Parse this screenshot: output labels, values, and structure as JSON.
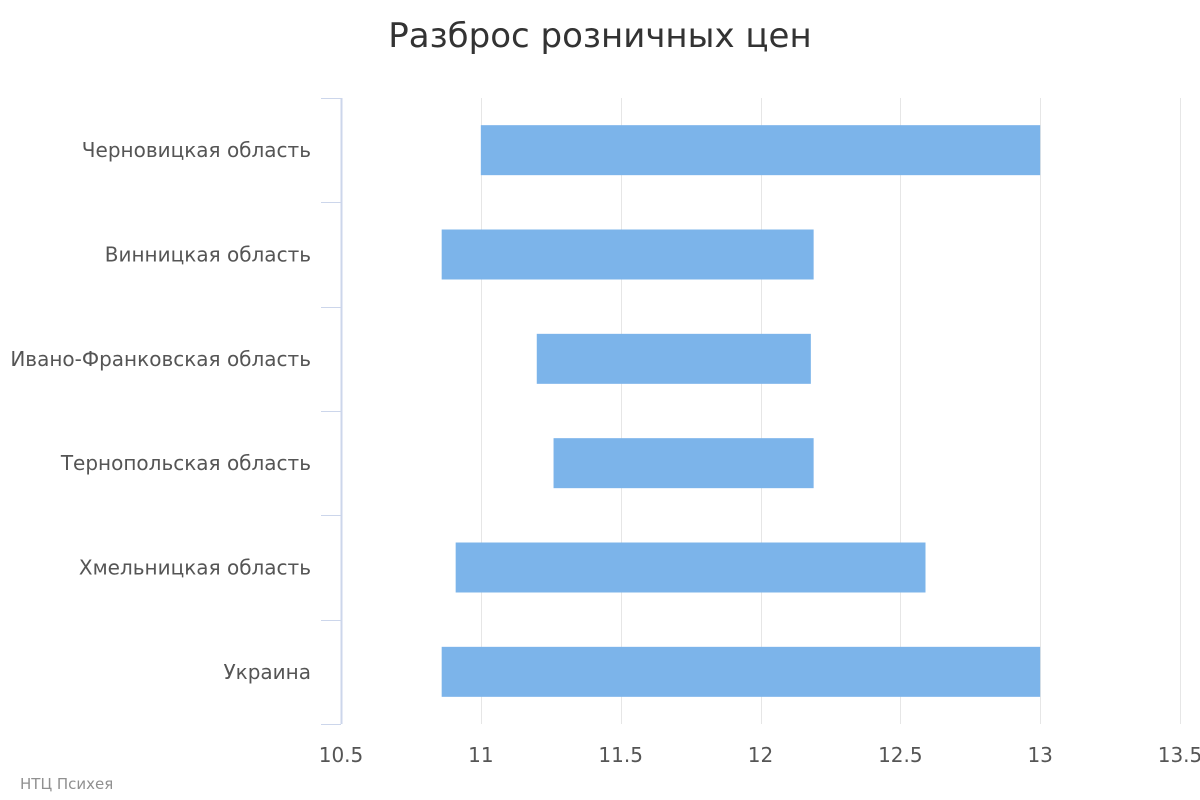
{
  "chart_data": {
    "type": "bar",
    "orientation": "horizontal",
    "range": true,
    "title": "Разброс розничных цен",
    "xlabel": "",
    "ylabel": "",
    "categories": [
      "Черновицкая область",
      "Винницкая область",
      "Ивано-Франковская область",
      "Тернопольская область",
      "Хмельницкая область",
      "Украина"
    ],
    "series": [
      {
        "low": [
          11.0,
          10.86,
          11.2,
          11.26,
          10.91,
          10.86
        ],
        "high": [
          13.0,
          12.19,
          12.18,
          12.19,
          12.59,
          13.0
        ]
      }
    ],
    "xlim": [
      10.5,
      13.5
    ],
    "xticks": [
      "10.5",
      "11",
      "11.5",
      "12",
      "12.5",
      "13",
      "13.5"
    ],
    "grid": true,
    "legend": "none",
    "colors": {
      "bar": "#7cb4ea",
      "grid": "#e6e6e6",
      "axis": "#ccd6eb",
      "title": "#333333",
      "label": "#555555",
      "credit": "#909090"
    }
  },
  "credit": "НТЦ Психея"
}
